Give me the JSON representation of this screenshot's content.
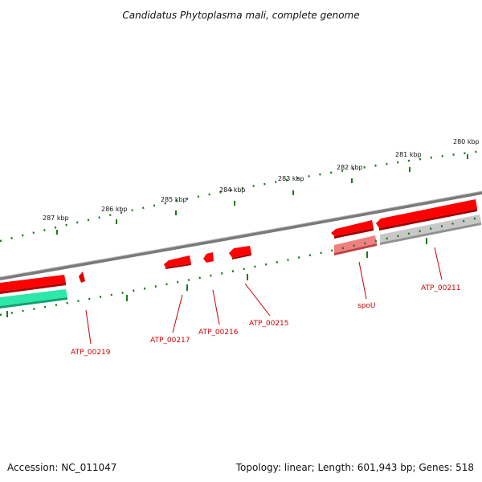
{
  "title": "Candidatus Phytoplasma mali, complete genome",
  "footer": {
    "accession": "Accession: NC_011047",
    "summary": "Topology: linear; Length: 601,943 bp; Genes: 518"
  },
  "scale_labels": [
    "287 kbp",
    "286 kbp",
    "285 kbp",
    "284 kbp",
    "283 kbp",
    "282 kbp",
    "281 kbp",
    "280 kbp"
  ],
  "gene_labels": [
    "ATP_00219",
    "ATP_00217",
    "ATP_00216",
    "ATP_00215",
    "spoU",
    "ATP_00211"
  ],
  "colors": {
    "backbone": "#808080",
    "gene_red": "#ff0000",
    "gene_pink": "#f08080",
    "gene_gray": "#c0c0c0",
    "gene_teal": "#2de8a8",
    "ticks": "#1a7a1a",
    "label": "#cc0000"
  }
}
